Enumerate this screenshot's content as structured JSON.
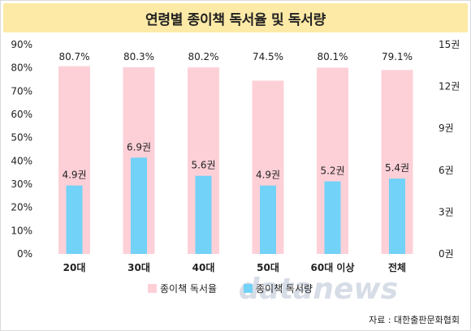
{
  "title": "연령별 종이책 독서율 및 독서량",
  "chart_data": {
    "type": "bar",
    "categories": [
      "20대",
      "30대",
      "40대",
      "50대",
      "60대 이상",
      "전체"
    ],
    "series": [
      {
        "name": "종이책 독서율",
        "axis": "left",
        "values": [
          80.7,
          80.3,
          80.2,
          74.5,
          80.1,
          79.1
        ],
        "labels": [
          "80.7%",
          "80.3%",
          "80.2%",
          "74.5%",
          "80.1%",
          "79.1%"
        ],
        "color": "#fdd0d8"
      },
      {
        "name": "종이책 독서량",
        "axis": "right",
        "values": [
          4.9,
          6.9,
          5.6,
          4.9,
          5.2,
          5.4
        ],
        "labels": [
          "4.9권",
          "6.9권",
          "5.6권",
          "4.9권",
          "5.2권",
          "5.4권"
        ],
        "color": "#72d2f7"
      }
    ],
    "y_left": {
      "lim": [
        0,
        90
      ],
      "ticks": [
        0,
        10,
        20,
        30,
        40,
        50,
        60,
        70,
        80,
        90
      ],
      "tick_labels": [
        "0%",
        "10%",
        "20%",
        "30%",
        "40%",
        "50%",
        "60%",
        "70%",
        "80%",
        "90%"
      ]
    },
    "y_right": {
      "lim": [
        0,
        15
      ],
      "ticks": [
        0,
        3,
        6,
        9,
        12,
        15
      ],
      "tick_labels": [
        "0권",
        "3권",
        "6권",
        "9권",
        "12권",
        "15권"
      ]
    },
    "grid": false,
    "legend_position": "bottom-center"
  },
  "watermark": "datanews",
  "source": "자료 : 대한출판문화협회"
}
